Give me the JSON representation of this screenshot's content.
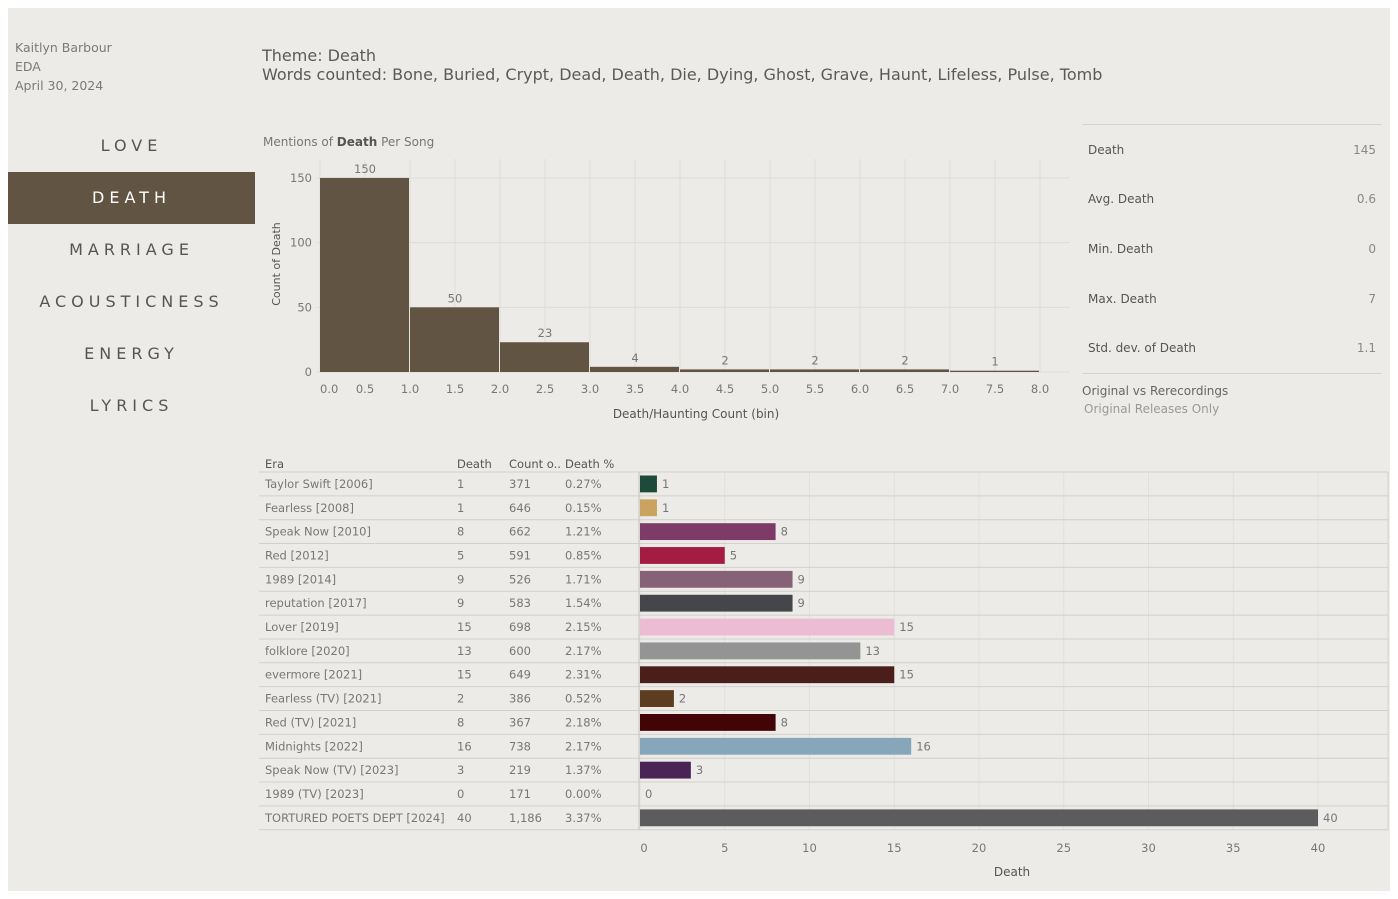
{
  "author": {
    "name": "Kaitlyn Barbour",
    "course": "EDA",
    "date": "April 30, 2024"
  },
  "nav": {
    "items": [
      "LOVE",
      "DEATH",
      "MARRIAGE",
      "ACOUSTICNESS",
      "ENERGY",
      "LYRICS"
    ],
    "active": "DEATH"
  },
  "theme": {
    "line1": "Theme: Death",
    "line2": "Words counted: Bone, Buried, Crypt, Dead, Death, Die, Dying, Ghost, Grave, Haunt, Lifeless, Pulse, Tomb"
  },
  "histogram": {
    "title_prefix": "Mentions of ",
    "title_bold": "Death",
    "title_suffix": " Per Song"
  },
  "stats": [
    {
      "label": "Death",
      "value": "145"
    },
    {
      "label": "Avg. Death",
      "value": "0.6"
    },
    {
      "label": "Min. Death",
      "value": "0"
    },
    {
      "label": "Max. Death",
      "value": "7"
    },
    {
      "label": "Std. dev. of Death",
      "value": "1.1"
    }
  ],
  "filter": {
    "title": "Original vs Rerecordings",
    "value": "Original Releases Only"
  },
  "table": {
    "headers": [
      "Era",
      "Death",
      "Count o..",
      "Death %"
    ]
  },
  "chart_data": [
    {
      "type": "bar",
      "title": "Mentions of Death Per Song",
      "xlabel": "Death/Haunting Count (bin)",
      "ylabel": "Count of Death",
      "bin_starts": [
        0,
        1,
        2,
        3,
        4,
        5,
        6,
        7
      ],
      "bin_width": 1,
      "values": [
        150,
        50,
        23,
        4,
        2,
        2,
        2,
        1
      ],
      "x_ticks": [
        "0.0",
        "0.5",
        "1.0",
        "1.5",
        "2.0",
        "2.5",
        "3.0",
        "3.5",
        "4.0",
        "4.5",
        "5.0",
        "5.5",
        "6.0",
        "6.5",
        "7.0",
        "7.5",
        "8.0"
      ],
      "y_ticks": [
        0,
        50,
        100,
        150
      ],
      "xlim": [
        0,
        8
      ],
      "ylim": [
        0,
        160
      ],
      "bar_color": "#625443"
    },
    {
      "type": "bar",
      "orientation": "horizontal",
      "xlabel": "Death",
      "x_ticks": [
        0,
        5,
        10,
        15,
        20,
        25,
        30,
        35,
        40
      ],
      "xlim": [
        0,
        44
      ],
      "rows": [
        {
          "era": "Taylor Swift [2006]",
          "death": 1,
          "count": "371",
          "pct": "0.27%",
          "color": "#1e4a3c"
        },
        {
          "era": "Fearless [2008]",
          "death": 1,
          "count": "646",
          "pct": "0.15%",
          "color": "#c9a35f"
        },
        {
          "era": "Speak Now [2010]",
          "death": 8,
          "count": "662",
          "pct": "1.21%",
          "color": "#7e3b67"
        },
        {
          "era": "Red [2012]",
          "death": 5,
          "count": "591",
          "pct": "0.85%",
          "color": "#a51c43"
        },
        {
          "era": "1989 [2014]",
          "death": 9,
          "count": "526",
          "pct": "1.71%",
          "color": "#856276"
        },
        {
          "era": "reputation [2017]",
          "death": 9,
          "count": "583",
          "pct": "1.54%",
          "color": "#444649"
        },
        {
          "era": "Lover [2019]",
          "death": 15,
          "count": "698",
          "pct": "2.15%",
          "color": "#ebbcd2"
        },
        {
          "era": "folklore [2020]",
          "death": 13,
          "count": "600",
          "pct": "2.17%",
          "color": "#949494"
        },
        {
          "era": "evermore [2021]",
          "death": 15,
          "count": "649",
          "pct": "2.31%",
          "color": "#4a1e1a"
        },
        {
          "era": "Fearless (TV) [2021]",
          "death": 2,
          "count": "386",
          "pct": "0.52%",
          "color": "#5c3d1f"
        },
        {
          "era": "Red (TV) [2021]",
          "death": 8,
          "count": "367",
          "pct": "2.18%",
          "color": "#430407"
        },
        {
          "era": "Midnights [2022]",
          "death": 16,
          "count": "738",
          "pct": "2.17%",
          "color": "#86a6b9"
        },
        {
          "era": "Speak Now (TV) [2023]",
          "death": 3,
          "count": "219",
          "pct": "1.37%",
          "color": "#4b2456"
        },
        {
          "era": "1989 (TV) [2023]",
          "death": 0,
          "count": "171",
          "pct": "0.00%",
          "color": "#8fb5d1"
        },
        {
          "era": "TORTURED POETS DEPT [2024]",
          "death": 40,
          "count": "1,186",
          "pct": "3.37%",
          "color": "#5c5b5e"
        }
      ]
    }
  ]
}
